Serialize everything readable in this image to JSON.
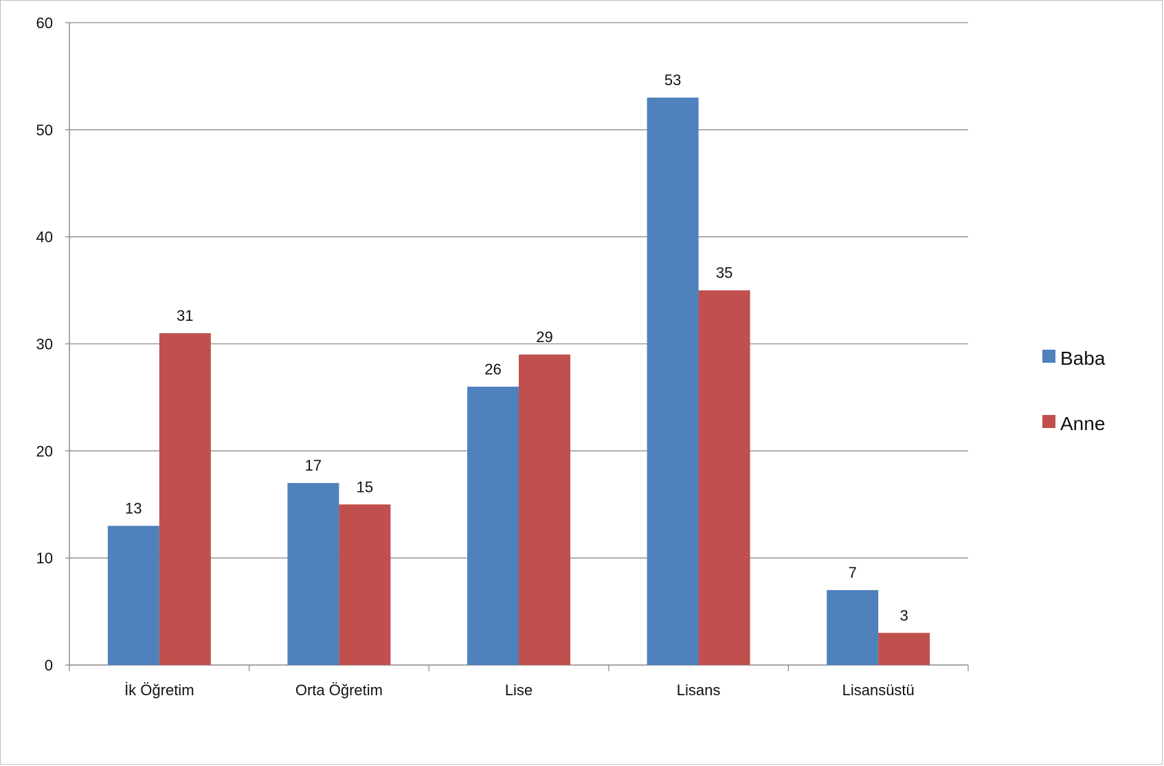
{
  "chart_data": {
    "type": "bar",
    "title": "",
    "xlabel": "",
    "ylabel": "",
    "categories": [
      "İk Öğretim",
      "Orta Öğretim",
      "Lise",
      "Lisans",
      "Lisansüstü"
    ],
    "series": [
      {
        "name": "Baba",
        "values": [
          13,
          17,
          26,
          53,
          7
        ],
        "color": "#4f81bd"
      },
      {
        "name": "Anne",
        "values": [
          31,
          15,
          29,
          35,
          3
        ],
        "color": "#c0504d"
      }
    ],
    "ylim": [
      0,
      60
    ],
    "yticks": [
      "0",
      "10",
      "20",
      "30",
      "40",
      "50",
      "60"
    ],
    "grid": true,
    "legend_position": "right",
    "data_labels": true
  }
}
